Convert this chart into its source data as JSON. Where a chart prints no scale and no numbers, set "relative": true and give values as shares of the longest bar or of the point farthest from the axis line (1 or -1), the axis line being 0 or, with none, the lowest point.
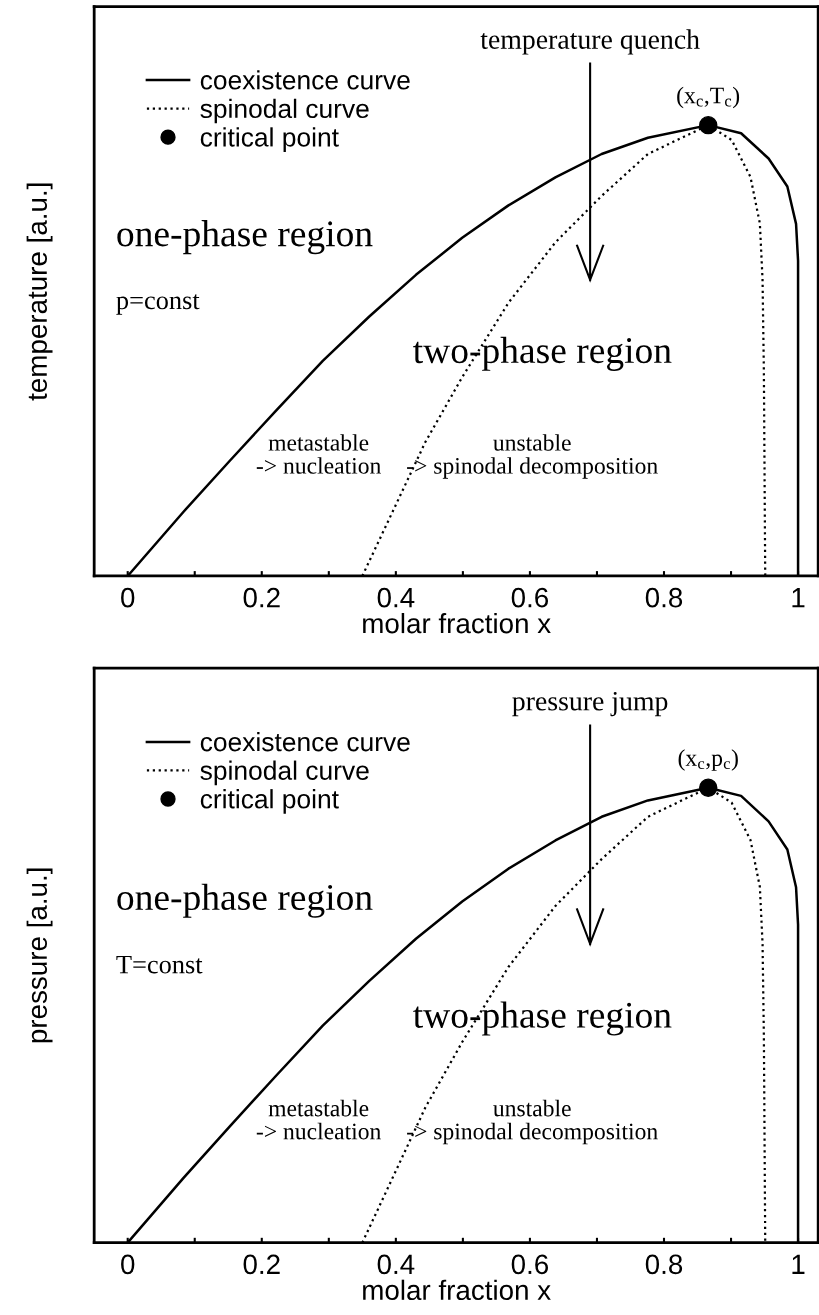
{
  "chart_data": [
    {
      "type": "line",
      "relative": true,
      "xlabel": "molar fraction x",
      "ylabel": "temperature [a.u.]",
      "xlim": [
        -0.05,
        1.03
      ],
      "xticks": [
        0,
        {
          "value": 0.1,
          "label": null
        },
        0.2,
        {
          "value": 0.3,
          "label": null
        },
        0.4,
        {
          "value": 0.5,
          "label": null
        },
        0.6,
        {
          "value": 0.7,
          "label": null
        },
        0.8,
        {
          "value": 0.9,
          "label": null
        },
        1
      ],
      "tick_labels": "x",
      "grid": false,
      "legend": "top left",
      "series": [
        {
          "name": "coexistence curve",
          "type": "line",
          "line_style": "solid",
          "marker": "none",
          "color": "#000000",
          "x": [
            0,
            0.083,
            0.152,
            0.222,
            0.291,
            0.36,
            0.43,
            0.499,
            0.568,
            0.638,
            0.707,
            0.776,
            0.866,
            0.915,
            0.956,
            0.984,
            0.997,
            1.0,
            1.0
          ],
          "values": [
            0,
            0.142,
            0.255,
            0.368,
            0.477,
            0.575,
            0.668,
            0.75,
            0.822,
            0.884,
            0.936,
            0.972,
            1.0,
            0.982,
            0.926,
            0.864,
            0.781,
            0.699,
            0
          ]
        },
        {
          "name": "spinodal curve",
          "type": "line",
          "line_style": "dotted",
          "marker": "none",
          "color": "#000000",
          "x": [
            0.35,
            0.395,
            0.444,
            0.499,
            0.568,
            0.638,
            0.707,
            0.776,
            0.866,
            0.901,
            0.929,
            0.943,
            0.947,
            0.949,
            0.951
          ],
          "values": [
            0,
            0.142,
            0.297,
            0.441,
            0.606,
            0.74,
            0.843,
            0.936,
            1.0,
            0.967,
            0.885,
            0.782,
            0.658,
            0.452,
            0
          ]
        },
        {
          "name": "critical point",
          "type": "scatter",
          "marker": "circle",
          "color": "#000000",
          "x": [
            0.866
          ],
          "values": [
            1.0
          ]
        }
      ],
      "annotations": [
        "temperature quench",
        {
          "text": "(x$_{c}$,T$_{c}$)",
          "x": 0.866,
          "y": 1.0
        },
        "one-phase region",
        "p=const",
        "two-phase region",
        "metastable\n-> nucleation",
        "unstable\n-> spinodal decomposition"
      ]
    },
    {
      "type": "line",
      "relative": true,
      "xlabel": "molar fraction x",
      "ylabel": "pressure [a.u.]",
      "xlim": [
        -0.05,
        1.03
      ],
      "xticks": [
        0,
        {
          "value": 0.1,
          "label": null
        },
        0.2,
        {
          "value": 0.3,
          "label": null
        },
        0.4,
        {
          "value": 0.5,
          "label": null
        },
        0.6,
        {
          "value": 0.7,
          "label": null
        },
        0.8,
        {
          "value": 0.9,
          "label": null
        },
        1
      ],
      "tick_labels": "x",
      "grid": false,
      "legend": "top left",
      "series": [
        {
          "name": "coexistence curve",
          "type": "line",
          "line_style": "solid",
          "marker": "none",
          "color": "#000000",
          "x": [
            0,
            0.083,
            0.152,
            0.222,
            0.291,
            0.36,
            0.43,
            0.499,
            0.568,
            0.638,
            0.707,
            0.776,
            0.866,
            0.915,
            0.956,
            0.984,
            0.997,
            1.0,
            1.0
          ],
          "values": [
            0,
            0.142,
            0.255,
            0.368,
            0.477,
            0.575,
            0.668,
            0.75,
            0.822,
            0.884,
            0.936,
            0.972,
            1.0,
            0.982,
            0.926,
            0.864,
            0.781,
            0.699,
            0
          ]
        },
        {
          "name": "spinodal curve",
          "type": "line",
          "line_style": "dotted",
          "marker": "none",
          "color": "#000000",
          "x": [
            0.35,
            0.395,
            0.444,
            0.499,
            0.568,
            0.638,
            0.707,
            0.776,
            0.866,
            0.901,
            0.929,
            0.943,
            0.947,
            0.949,
            0.951
          ],
          "values": [
            0,
            0.142,
            0.297,
            0.441,
            0.606,
            0.74,
            0.843,
            0.936,
            1.0,
            0.967,
            0.885,
            0.782,
            0.658,
            0.452,
            0
          ]
        },
        {
          "name": "critical point",
          "type": "scatter",
          "marker": "circle",
          "color": "#000000",
          "x": [
            0.866
          ],
          "values": [
            1.0
          ]
        }
      ],
      "annotations": [
        "pressure jump",
        {
          "text": "(x$_{c}$,p$_{c}$)",
          "x": 0.866,
          "y": 1.0
        },
        "one-phase region",
        "T=const",
        "two-phase region",
        "metastable\n-> nucleation",
        "unstable\n-> spinodal decomposition"
      ]
    }
  ]
}
